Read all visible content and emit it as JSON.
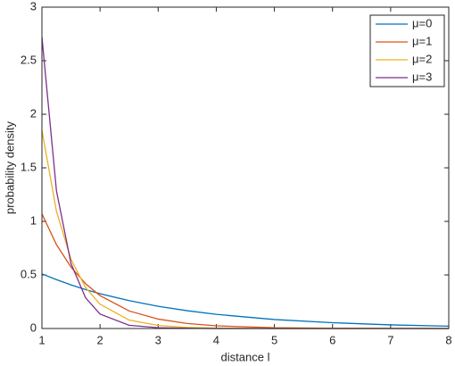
{
  "chart_data": {
    "type": "line",
    "xlabel": "distance l",
    "ylabel": "probability density",
    "x": [
      1,
      1.25,
      1.5,
      1.75,
      2,
      2.5,
      3,
      3.5,
      4,
      5,
      6,
      7,
      8
    ],
    "series": [
      {
        "name": "μ=0",
        "color": "#0072bd",
        "values": [
          0.51,
          0.456,
          0.407,
          0.364,
          0.325,
          0.26,
          0.207,
          0.166,
          0.132,
          0.084,
          0.054,
          0.034,
          0.022
        ]
      },
      {
        "name": "μ=1",
        "color": "#d95319",
        "values": [
          1.07,
          0.783,
          0.573,
          0.419,
          0.307,
          0.164,
          0.088,
          0.047,
          0.025,
          0.007,
          0.002,
          0.001,
          0
        ]
      },
      {
        "name": "μ=2",
        "color": "#edb120",
        "values": [
          1.85,
          1.094,
          0.647,
          0.383,
          0.227,
          0.079,
          0.028,
          0.01,
          0.003,
          0,
          0,
          0,
          0
        ]
      },
      {
        "name": "μ=3",
        "color": "#7e2f8e",
        "values": [
          2.72,
          1.285,
          0.607,
          0.287,
          0.135,
          0.03,
          0.007,
          0.002,
          0,
          0,
          0,
          0,
          0
        ]
      }
    ],
    "xlim": [
      1,
      8
    ],
    "xticks": [
      1,
      2,
      3,
      4,
      5,
      6,
      7,
      8
    ],
    "ylim": [
      0,
      3
    ],
    "yticks": [
      0,
      0.5,
      1,
      1.5,
      2,
      2.5,
      3
    ],
    "grid": false,
    "legend": "northeast"
  }
}
